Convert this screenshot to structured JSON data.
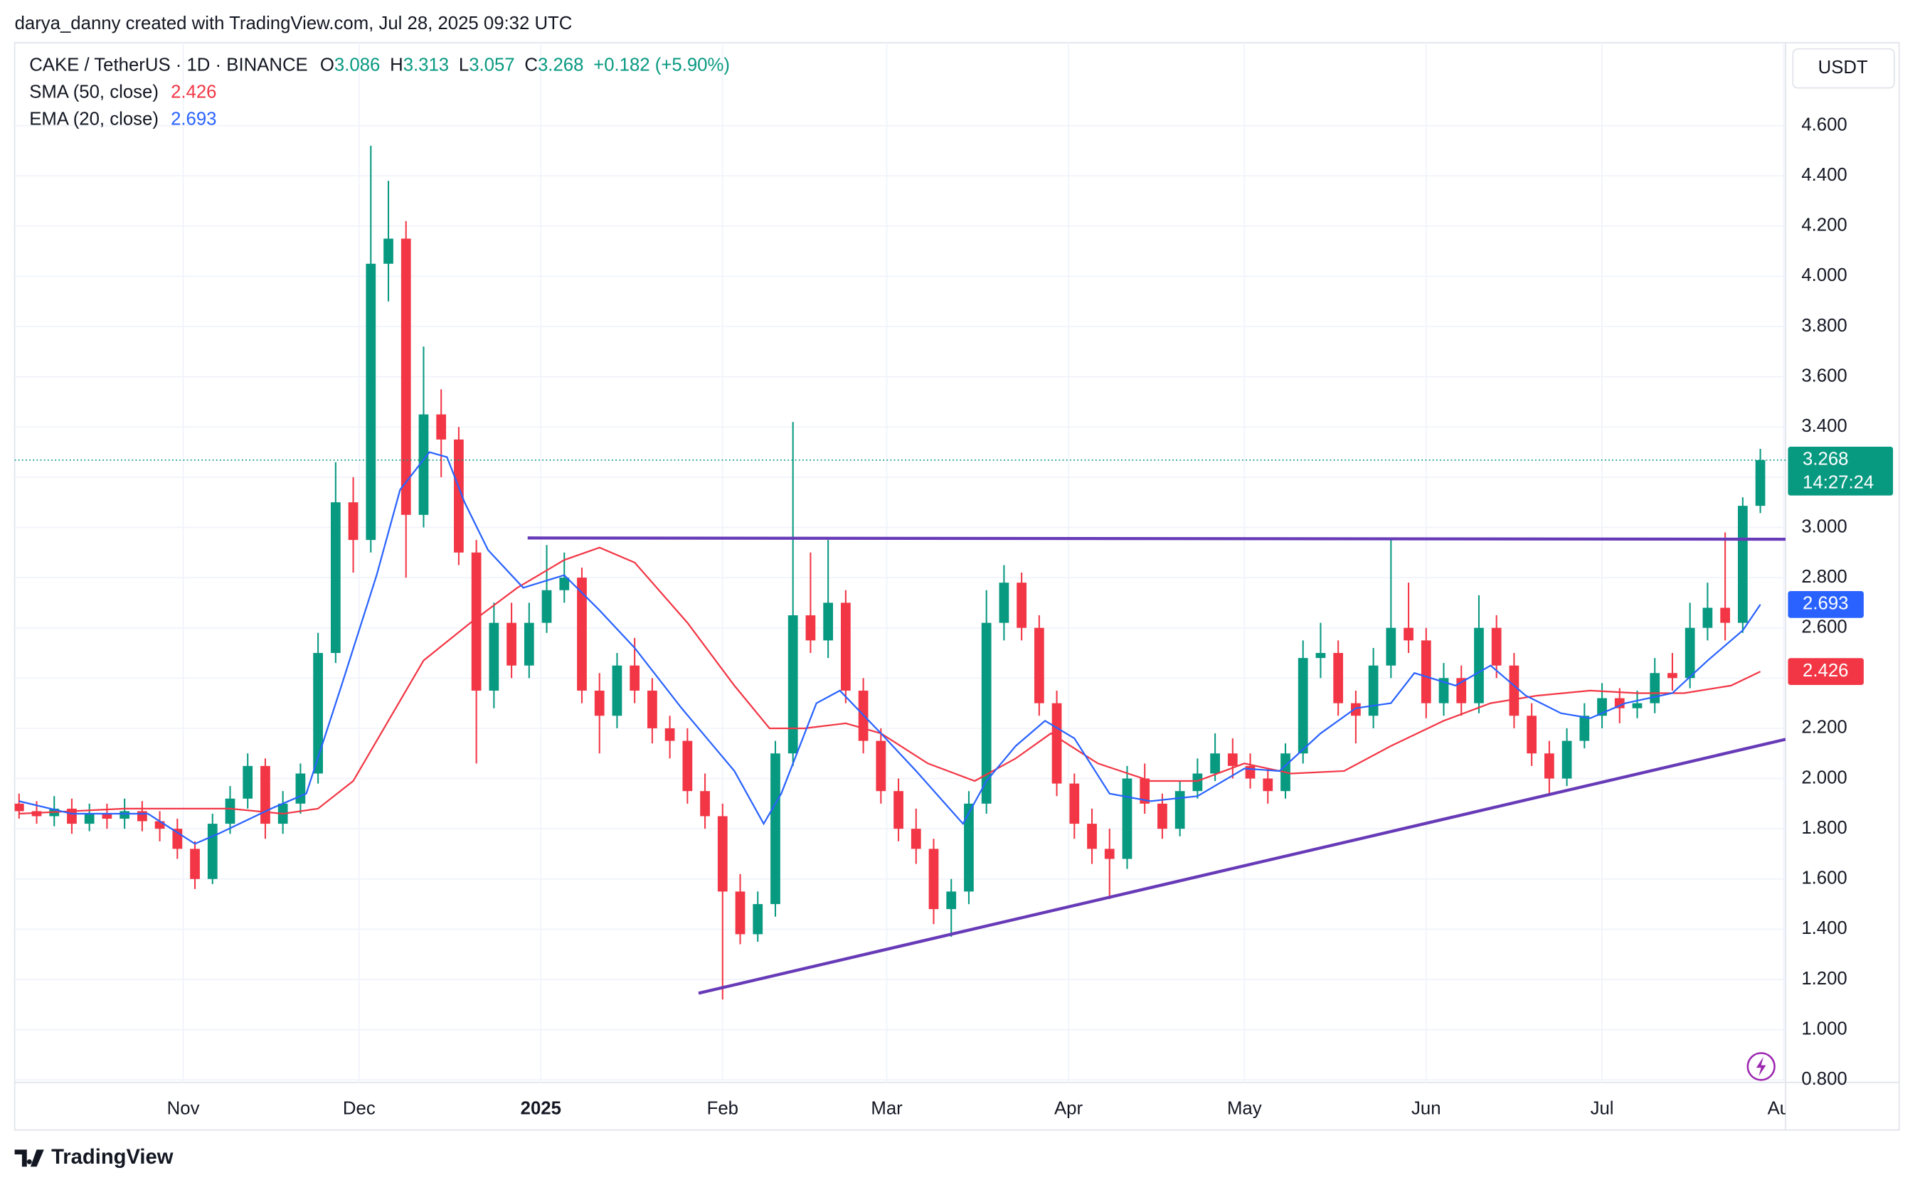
{
  "header": {
    "credit": "darya_danny created with TradingView.com, Jul 28, 2025 09:32 UTC",
    "symbol": "CAKE / TetherUS · 1D · BINANCE",
    "ohlc_letters": [
      "O",
      "H",
      "L",
      "C"
    ],
    "change": "+0.182 (+5.90%)",
    "currency": "USDT",
    "countdown": "14:27:24",
    "brand": "TradingView"
  },
  "chart_data": {
    "type": "candlestick",
    "up_color": "#089981",
    "down_color": "#f23645",
    "x": [
      3,
      6,
      9,
      12,
      15,
      18,
      21,
      24,
      27,
      30,
      33,
      36,
      39,
      42,
      45,
      48,
      51,
      54,
      57,
      60,
      63,
      66,
      69,
      72,
      75,
      78,
      81,
      84,
      87,
      90,
      93,
      96,
      99,
      102,
      105,
      108,
      111,
      114,
      117,
      120,
      123,
      126,
      129,
      132,
      135,
      138,
      141,
      144,
      147,
      150,
      153,
      156,
      159,
      162,
      165,
      168,
      171,
      174,
      177,
      180,
      183,
      186,
      189,
      192,
      195,
      198,
      201,
      204,
      207,
      210,
      213,
      216,
      219,
      222,
      225,
      228,
      231,
      234,
      237,
      240,
      243,
      246,
      249,
      252,
      255,
      258,
      261,
      264,
      267,
      270,
      273,
      276,
      279,
      282,
      285,
      288,
      291,
      294,
      297,
      300
    ],
    "open": [
      1.9,
      1.87,
      1.85,
      1.88,
      1.82,
      1.86,
      1.84,
      1.87,
      1.83,
      1.8,
      1.72,
      1.6,
      1.82,
      1.92,
      2.05,
      1.82,
      1.9,
      2.02,
      2.5,
      3.1,
      2.95,
      4.05,
      4.15,
      3.05,
      3.45,
      3.35,
      2.9,
      2.35,
      2.62,
      2.45,
      2.62,
      2.75,
      2.8,
      2.35,
      2.25,
      2.45,
      2.35,
      2.2,
      2.15,
      1.95,
      1.85,
      1.55,
      1.38,
      1.5,
      2.1,
      2.65,
      2.55,
      2.7,
      2.35,
      2.15,
      1.95,
      1.8,
      1.72,
      1.48,
      1.55,
      1.9,
      2.62,
      2.78,
      2.6,
      2.3,
      1.98,
      1.82,
      1.72,
      1.68,
      2.0,
      1.9,
      1.8,
      1.95,
      2.02,
      2.1,
      2.05,
      2.0,
      1.95,
      2.1,
      2.48,
      2.5,
      2.3,
      2.25,
      2.45,
      2.6,
      2.55,
      2.3,
      2.4,
      2.3,
      2.6,
      2.45,
      2.25,
      2.1,
      2.0,
      2.15,
      2.25,
      2.32,
      2.28,
      2.3,
      2.42,
      2.4,
      2.6,
      2.68,
      2.62,
      3.086
    ],
    "high": [
      1.94,
      1.91,
      1.93,
      1.92,
      1.9,
      1.9,
      1.92,
      1.91,
      1.87,
      1.84,
      1.75,
      1.86,
      1.97,
      2.1,
      2.08,
      1.95,
      2.06,
      2.58,
      3.26,
      3.2,
      4.52,
      4.38,
      4.22,
      3.72,
      3.55,
      3.4,
      2.95,
      2.7,
      2.7,
      2.7,
      2.93,
      2.9,
      2.84,
      2.42,
      2.5,
      2.56,
      2.4,
      2.25,
      2.2,
      2.02,
      1.9,
      1.62,
      1.55,
      2.15,
      3.42,
      2.9,
      2.95,
      2.75,
      2.4,
      2.2,
      2.0,
      1.88,
      1.76,
      1.6,
      1.95,
      2.75,
      2.85,
      2.82,
      2.65,
      2.35,
      2.02,
      1.88,
      1.8,
      2.05,
      2.06,
      1.94,
      1.99,
      2.08,
      2.18,
      2.16,
      2.1,
      2.04,
      2.14,
      2.55,
      2.62,
      2.55,
      2.35,
      2.52,
      2.95,
      2.78,
      2.6,
      2.46,
      2.45,
      2.73,
      2.65,
      2.5,
      2.3,
      2.15,
      2.2,
      2.3,
      2.38,
      2.36,
      2.35,
      2.48,
      2.5,
      2.7,
      2.78,
      2.98,
      3.12,
      3.313
    ],
    "low": [
      1.84,
      1.82,
      1.81,
      1.78,
      1.79,
      1.8,
      1.8,
      1.79,
      1.75,
      1.68,
      1.56,
      1.58,
      1.78,
      1.88,
      1.76,
      1.78,
      1.86,
      1.98,
      2.46,
      2.82,
      2.9,
      3.9,
      2.8,
      3.0,
      3.2,
      2.85,
      2.06,
      2.28,
      2.4,
      2.4,
      2.58,
      2.7,
      2.3,
      2.1,
      2.2,
      2.3,
      2.14,
      2.08,
      1.9,
      1.8,
      1.12,
      1.34,
      1.35,
      1.45,
      2.05,
      2.5,
      2.48,
      2.3,
      2.1,
      1.9,
      1.75,
      1.66,
      1.42,
      1.37,
      1.5,
      1.86,
      2.55,
      2.55,
      2.25,
      1.93,
      1.76,
      1.66,
      1.52,
      1.64,
      1.86,
      1.76,
      1.77,
      1.92,
      1.99,
      2.0,
      1.96,
      1.9,
      1.92,
      2.06,
      2.4,
      2.25,
      2.14,
      2.2,
      2.4,
      2.5,
      2.24,
      2.25,
      2.25,
      2.26,
      2.4,
      2.2,
      2.05,
      1.93,
      1.97,
      2.12,
      2.2,
      2.22,
      2.24,
      2.26,
      2.35,
      2.36,
      2.55,
      2.55,
      2.58,
      3.057
    ],
    "close": [
      1.87,
      1.85,
      1.88,
      1.82,
      1.86,
      1.84,
      1.87,
      1.83,
      1.8,
      1.72,
      1.6,
      1.82,
      1.92,
      2.05,
      1.82,
      1.9,
      2.02,
      2.5,
      3.1,
      2.95,
      4.05,
      4.15,
      3.05,
      3.45,
      3.35,
      2.9,
      2.35,
      2.62,
      2.45,
      2.62,
      2.75,
      2.8,
      2.35,
      2.25,
      2.45,
      2.35,
      2.2,
      2.15,
      1.95,
      1.85,
      1.55,
      1.38,
      1.5,
      2.1,
      2.65,
      2.55,
      2.7,
      2.35,
      2.15,
      1.95,
      1.8,
      1.72,
      1.48,
      1.55,
      1.9,
      2.62,
      2.78,
      2.6,
      2.3,
      1.98,
      1.82,
      1.72,
      1.68,
      2.0,
      1.9,
      1.8,
      1.95,
      2.02,
      2.1,
      2.05,
      2.0,
      1.95,
      2.1,
      2.48,
      2.5,
      2.3,
      2.25,
      2.45,
      2.6,
      2.55,
      2.3,
      2.4,
      2.3,
      2.6,
      2.45,
      2.25,
      2.1,
      2.0,
      2.15,
      2.25,
      2.32,
      2.28,
      2.3,
      2.42,
      2.4,
      2.6,
      2.68,
      2.62,
      3.086,
      3.268
    ],
    "xlim": [
      2.25,
      304.3
    ],
    "xticks": [
      {
        "value": 31,
        "label": "Nov"
      },
      {
        "value": 61,
        "label": "Dec"
      },
      {
        "value": 92,
        "label": "2025"
      },
      {
        "value": 123,
        "label": "Feb"
      },
      {
        "value": 151,
        "label": "Mar"
      },
      {
        "value": 182,
        "label": "Apr"
      },
      {
        "value": 212,
        "label": "May"
      },
      {
        "value": 243,
        "label": "Jun"
      },
      {
        "value": 273,
        "label": "Jul"
      },
      {
        "value": 304,
        "label": "Aug"
      }
    ],
    "ylim": [
      0.79,
      4.93
    ],
    "yticks": [
      {
        "value": 0.8,
        "label": "0.800"
      },
      {
        "value": 1.0,
        "label": "1.000"
      },
      {
        "value": 1.2,
        "label": "1.200"
      },
      {
        "value": 1.4,
        "label": "1.400"
      },
      {
        "value": 1.6,
        "label": "1.600"
      },
      {
        "value": 1.8,
        "label": "1.800"
      },
      {
        "value": 2.0,
        "label": "2.000"
      },
      {
        "value": 2.2,
        "label": "2.200"
      },
      {
        "value": 2.4,
        "label": "2.400"
      },
      {
        "value": 2.6,
        "label": "2.600"
      },
      {
        "value": 2.8,
        "label": "2.800"
      },
      {
        "value": 3.0,
        "label": "3.000"
      },
      {
        "value": 3.2,
        "label": "3.200"
      },
      {
        "value": 3.4,
        "label": "3.400"
      },
      {
        "value": 3.6,
        "label": "3.600"
      },
      {
        "value": 3.8,
        "label": "3.800"
      },
      {
        "value": 4.0,
        "label": "4.000"
      },
      {
        "value": 4.2,
        "label": "4.200"
      },
      {
        "value": 4.4,
        "label": "4.400"
      },
      {
        "value": 4.6,
        "label": "4.600"
      }
    ],
    "grid": true,
    "indicators": [
      {
        "name": "SMA (50, close)",
        "color": "#f23645",
        "value": 2.426,
        "x": [
          3,
          12,
          21,
          30,
          39,
          48,
          54,
          60,
          66,
          72,
          80,
          88,
          96,
          102,
          108,
          117,
          125,
          131,
          137,
          144,
          150,
          158,
          166,
          173,
          179,
          187,
          196,
          204,
          212,
          220,
          229,
          237,
          246,
          254,
          262,
          271,
          279,
          287,
          295,
          300
        ],
        "values": [
          1.86,
          1.87,
          1.88,
          1.88,
          1.88,
          1.86,
          1.88,
          1.99,
          2.23,
          2.47,
          2.62,
          2.76,
          2.87,
          2.92,
          2.86,
          2.62,
          2.37,
          2.2,
          2.2,
          2.22,
          2.18,
          2.06,
          1.99,
          2.08,
          2.18,
          2.06,
          1.99,
          1.99,
          2.06,
          2.02,
          2.03,
          2.13,
          2.23,
          2.3,
          2.33,
          2.35,
          2.34,
          2.34,
          2.37,
          2.426
        ]
      },
      {
        "name": "EMA (20, close)",
        "color": "#2962ff",
        "value": 2.693,
        "x": [
          3,
          12,
          25,
          33,
          37,
          46,
          52,
          58,
          64,
          68,
          73,
          76,
          79,
          83,
          89,
          96,
          102,
          108,
          116,
          125,
          130,
          133,
          139,
          143,
          150,
          156,
          164,
          168,
          173,
          178,
          183,
          189,
          196,
          204,
          212,
          218,
          225,
          231,
          237,
          241,
          248,
          254,
          260,
          266,
          271,
          277,
          285,
          291,
          297,
          300
        ],
        "values": [
          1.91,
          1.86,
          1.86,
          1.74,
          1.78,
          1.88,
          1.94,
          2.37,
          2.81,
          3.15,
          3.3,
          3.28,
          3.1,
          2.91,
          2.76,
          2.81,
          2.67,
          2.52,
          2.28,
          2.03,
          1.82,
          1.94,
          2.3,
          2.35,
          2.18,
          2.03,
          1.82,
          1.99,
          2.13,
          2.23,
          2.16,
          1.94,
          1.91,
          1.93,
          2.04,
          2.03,
          2.18,
          2.28,
          2.3,
          2.42,
          2.37,
          2.45,
          2.33,
          2.26,
          2.24,
          2.3,
          2.34,
          2.47,
          2.59,
          2.693
        ]
      }
    ],
    "trendlines": [
      {
        "color": "#673ab7",
        "x": [
          89.75,
          304.3
        ],
        "y": [
          2.958,
          2.953
        ]
      },
      {
        "color": "#673ab7",
        "x": [
          118.9,
          304.3
        ],
        "y": [
          1.145,
          2.156
        ]
      }
    ]
  }
}
